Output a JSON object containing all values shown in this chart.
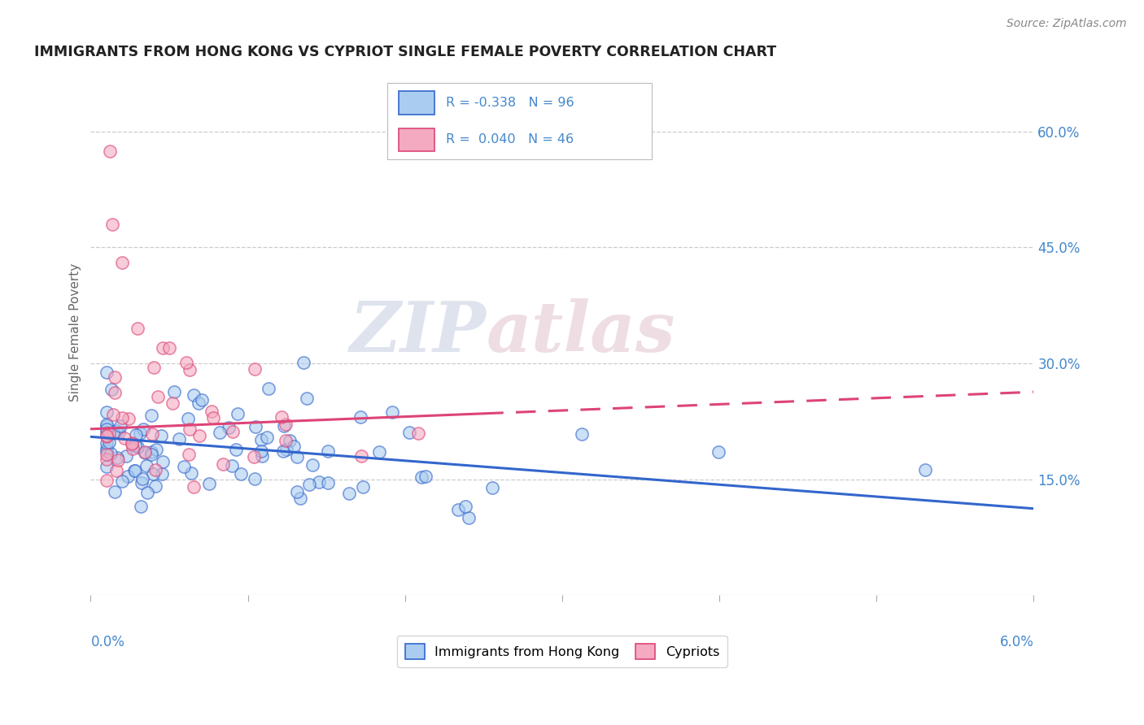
{
  "title": "IMMIGRANTS FROM HONG KONG VS CYPRIOT SINGLE FEMALE POVERTY CORRELATION CHART",
  "source": "Source: ZipAtlas.com",
  "ylabel": "Single Female Poverty",
  "legend_label_blue": "Immigrants from Hong Kong",
  "legend_label_pink": "Cypriots",
  "blue_R": "-0.338",
  "blue_N": "96",
  "pink_R": "0.040",
  "pink_N": "46",
  "blue_color": "#aaccf0",
  "pink_color": "#f4aac0",
  "blue_line_color": "#3366cc",
  "pink_line_color": "#dd4477",
  "right_yticks": [
    0.15,
    0.3,
    0.45,
    0.6
  ],
  "right_ytick_labels": [
    "15.0%",
    "30.0%",
    "45.0%",
    "60.0%"
  ],
  "background_color": "#ffffff",
  "title_color": "#333333",
  "axis_label_color": "#4488cc",
  "watermark_zip": "ZIP",
  "watermark_atlas": "atlas",
  "xlim": [
    0.0,
    0.06
  ],
  "ylim": [
    0.0,
    0.68
  ],
  "blue_intercept": 0.205,
  "blue_slope": -1.55,
  "pink_intercept": 0.215,
  "pink_slope": 0.8
}
